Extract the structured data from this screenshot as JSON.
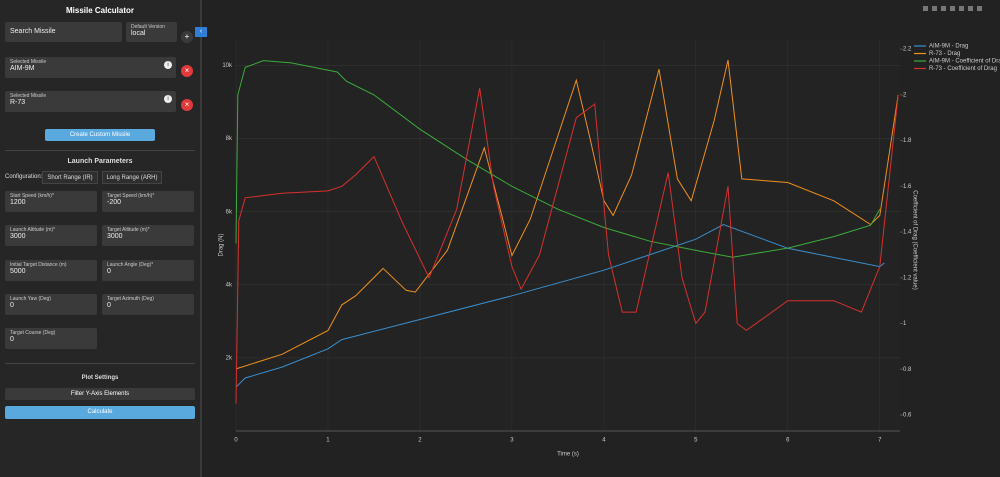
{
  "sidebar": {
    "title": "Missile Calculator",
    "search": "Search Missile",
    "default_version_label": "Default Version",
    "default_version": "local",
    "add": "+",
    "selected": [
      {
        "label": "Selected Missile",
        "value": "AIM-9M"
      },
      {
        "label": "Selected Missile",
        "value": "R-73"
      }
    ],
    "create_button": "Create Custom Missile",
    "launch_title": "Launch Parameters",
    "configuration_label": "Configuration:",
    "configurations": [
      "Short Range (IR)",
      "Long Range (ARH)"
    ],
    "fields": [
      {
        "label": "Start Speed (km/h)*",
        "value": "1200"
      },
      {
        "label": "Target Speed (km/h)*",
        "value": "-200"
      },
      {
        "label": "Launch Altitude (m)*",
        "value": "3000"
      },
      {
        "label": "Target Altitude (m)*",
        "value": "3000"
      },
      {
        "label": "Initial Target Distance (m)",
        "value": "5000"
      },
      {
        "label": "Launch Angle (Deg)*",
        "value": "0"
      },
      {
        "label": "Launch Yaw (Deg)",
        "value": "0"
      },
      {
        "label": "Target Azimuth (Deg)",
        "value": "0"
      },
      {
        "label": "Target Course (Deg)",
        "value": "0"
      }
    ],
    "plot_title": "Plot Settings",
    "filter_button": "Filter Y-Axis Elements",
    "calculate_button": "Calculate"
  },
  "chart_data": {
    "type": "line",
    "x_label": "Time (s)",
    "y_label": "Drag (N)",
    "y2_label": "Coefficient of Drag (Coefficient value)",
    "xlim": [
      0,
      7.22
    ],
    "xticks": [
      0,
      1,
      2,
      3,
      4,
      5,
      6,
      7
    ],
    "ylim": [
      0,
      10700
    ],
    "yticks": [
      {
        "value": 2000,
        "label": "2k"
      },
      {
        "value": 4000,
        "label": "4k"
      },
      {
        "value": 6000,
        "label": "6k"
      },
      {
        "value": 8000,
        "label": "8k"
      },
      {
        "value": 10000,
        "label": "10k"
      }
    ],
    "y2lim": [
      0.53,
      2.24
    ],
    "y2ticks": [
      0.6,
      0.8,
      1,
      1.2,
      1.4,
      1.6,
      1.8,
      2,
      2.2
    ],
    "grid": true,
    "series": [
      {
        "name": "AIM-9M - Drag",
        "color": "#3a8fd0",
        "x": [
          0,
          0.1,
          0.5,
          1,
          1.15,
          2,
          3,
          4,
          5,
          5.3,
          6,
          7,
          7.05
        ],
        "values": [
          1200,
          1450,
          1750,
          2250,
          2500,
          3050,
          3700,
          4400,
          5250,
          5650,
          5000,
          4500,
          4600
        ]
      },
      {
        "name": "R-73 - Drag",
        "color": "#f0901e",
        "x": [
          0,
          0.5,
          1,
          1.15,
          1.3,
          1.6,
          1.85,
          1.95,
          2.3,
          2.7,
          2.9,
          3,
          3.2,
          3.7,
          3.85,
          4,
          4.1,
          4.3,
          4.6,
          4.8,
          4.95,
          5.2,
          5.35,
          5.5,
          6,
          6.5,
          6.9,
          7,
          7.2
        ],
        "values": [
          1700,
          2100,
          2750,
          3450,
          3700,
          4450,
          3850,
          3800,
          4950,
          7750,
          5800,
          4800,
          5800,
          9600,
          8000,
          6300,
          5900,
          7000,
          9900,
          6900,
          6300,
          8500,
          10150,
          6900,
          6800,
          6300,
          5650,
          5900,
          9200
        ]
      },
      {
        "name": "AIM-9M - Coefficient of Drag",
        "color": "#3cab3c",
        "axis": "y2",
        "x": [
          0,
          0.02,
          0.1,
          0.3,
          0.6,
          1.1,
          1.2,
          1.5,
          2,
          2.5,
          3,
          3.5,
          4,
          4.5,
          5,
          5.4,
          6,
          6.5,
          6.9,
          7
        ],
        "values": [
          1.35,
          2,
          2.12,
          2.15,
          2.14,
          2.1,
          2.06,
          2,
          1.85,
          1.72,
          1.6,
          1.5,
          1.42,
          1.36,
          1.32,
          1.29,
          1.33,
          1.38,
          1.43,
          1.5
        ]
      },
      {
        "name": "R-73 - Coefficient of Drag",
        "color": "#d6312e",
        "axis": "y2",
        "x": [
          0,
          0.03,
          0.1,
          0.5,
          1,
          1.15,
          1.3,
          1.5,
          1.8,
          2.1,
          2.4,
          2.65,
          2.8,
          3,
          3.1,
          3.3,
          3.7,
          3.9,
          4.05,
          4.2,
          4.35,
          4.7,
          4.85,
          5,
          5.1,
          5.35,
          5.45,
          5.55,
          6,
          6.5,
          6.8,
          7,
          7.2
        ],
        "values": [
          0.65,
          1.45,
          1.55,
          1.57,
          1.58,
          1.6,
          1.65,
          1.73,
          1.45,
          1.2,
          1.5,
          2.03,
          1.6,
          1.25,
          1.15,
          1.3,
          1.9,
          1.96,
          1.3,
          1.05,
          1.05,
          1.66,
          1.2,
          1,
          1.05,
          1.6,
          1,
          0.97,
          1.1,
          1.1,
          1.05,
          1.25,
          2
        ]
      }
    ],
    "legend": "top-right"
  }
}
